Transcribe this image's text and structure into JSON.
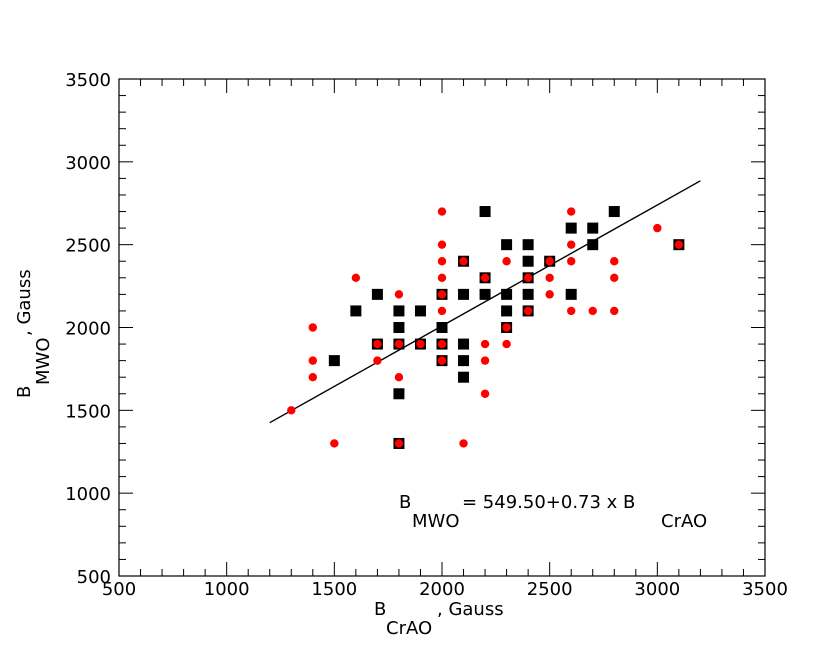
{
  "chart_data": {
    "type": "scatter",
    "xlabel": {
      "main": "B",
      "sub": "CrAO",
      "suffix": ", Gauss"
    },
    "ylabel": {
      "main": "B",
      "sub": "MWO",
      "suffix": ", Gauss"
    },
    "xlim": [
      500,
      3500
    ],
    "ylim": [
      500,
      3500
    ],
    "xticks": [
      "500",
      "1000",
      "1500",
      "2000",
      "2500",
      "3000",
      "3500"
    ],
    "yticks": [
      "500",
      "1000",
      "1500",
      "2000",
      "2500",
      "3000",
      "3500"
    ],
    "grid": false,
    "annotation": {
      "lhs": "B",
      "lhs_sub": "MWO",
      "rhs": " = 549.50+0.73 x B",
      "rhs_sub": "CrAO"
    },
    "fit_line": {
      "intercept": 549.5,
      "slope": 0.73,
      "x_range": [
        1200,
        3200
      ],
      "color": "#000000"
    },
    "series": [
      {
        "marker": "square",
        "color": "#000000",
        "points": [
          [
            1500,
            1800
          ],
          [
            1600,
            2100
          ],
          [
            1700,
            1900
          ],
          [
            1700,
            2200
          ],
          [
            1800,
            1300
          ],
          [
            1800,
            1600
          ],
          [
            1800,
            1900
          ],
          [
            1800,
            2000
          ],
          [
            1800,
            2100
          ],
          [
            1900,
            1900
          ],
          [
            1900,
            2100
          ],
          [
            2000,
            1800
          ],
          [
            2000,
            1900
          ],
          [
            2000,
            2000
          ],
          [
            2000,
            2200
          ],
          [
            2100,
            1700
          ],
          [
            2100,
            1800
          ],
          [
            2100,
            1900
          ],
          [
            2100,
            2200
          ],
          [
            2100,
            2400
          ],
          [
            2200,
            2200
          ],
          [
            2200,
            2300
          ],
          [
            2200,
            2700
          ],
          [
            2300,
            2000
          ],
          [
            2300,
            2100
          ],
          [
            2300,
            2200
          ],
          [
            2300,
            2500
          ],
          [
            2400,
            2100
          ],
          [
            2400,
            2200
          ],
          [
            2400,
            2300
          ],
          [
            2400,
            2400
          ],
          [
            2400,
            2500
          ],
          [
            2500,
            2400
          ],
          [
            2600,
            2200
          ],
          [
            2600,
            2600
          ],
          [
            2700,
            2500
          ],
          [
            2700,
            2600
          ],
          [
            2800,
            2700
          ],
          [
            3100,
            2500
          ]
        ]
      },
      {
        "marker": "circle",
        "color": "#ff0000",
        "points": [
          [
            1300,
            1500
          ],
          [
            1400,
            1700
          ],
          [
            1400,
            1800
          ],
          [
            1400,
            2000
          ],
          [
            1500,
            1300
          ],
          [
            1600,
            2300
          ],
          [
            1700,
            1800
          ],
          [
            1700,
            1900
          ],
          [
            1800,
            1300
          ],
          [
            1800,
            1700
          ],
          [
            1800,
            1900
          ],
          [
            1800,
            2200
          ],
          [
            1900,
            1900
          ],
          [
            2000,
            1800
          ],
          [
            2000,
            1900
          ],
          [
            2000,
            2100
          ],
          [
            2000,
            2200
          ],
          [
            2000,
            2300
          ],
          [
            2000,
            2400
          ],
          [
            2000,
            2500
          ],
          [
            2000,
            2700
          ],
          [
            2100,
            1300
          ],
          [
            2100,
            2400
          ],
          [
            2200,
            1600
          ],
          [
            2200,
            1800
          ],
          [
            2200,
            1900
          ],
          [
            2200,
            2300
          ],
          [
            2300,
            1900
          ],
          [
            2300,
            2000
          ],
          [
            2300,
            2400
          ],
          [
            2400,
            2100
          ],
          [
            2400,
            2300
          ],
          [
            2500,
            2200
          ],
          [
            2500,
            2300
          ],
          [
            2500,
            2400
          ],
          [
            2600,
            2100
          ],
          [
            2600,
            2400
          ],
          [
            2600,
            2500
          ],
          [
            2600,
            2700
          ],
          [
            2700,
            2100
          ],
          [
            2800,
            2100
          ],
          [
            2800,
            2300
          ],
          [
            2800,
            2400
          ],
          [
            3000,
            2600
          ],
          [
            3100,
            2500
          ]
        ]
      }
    ]
  }
}
